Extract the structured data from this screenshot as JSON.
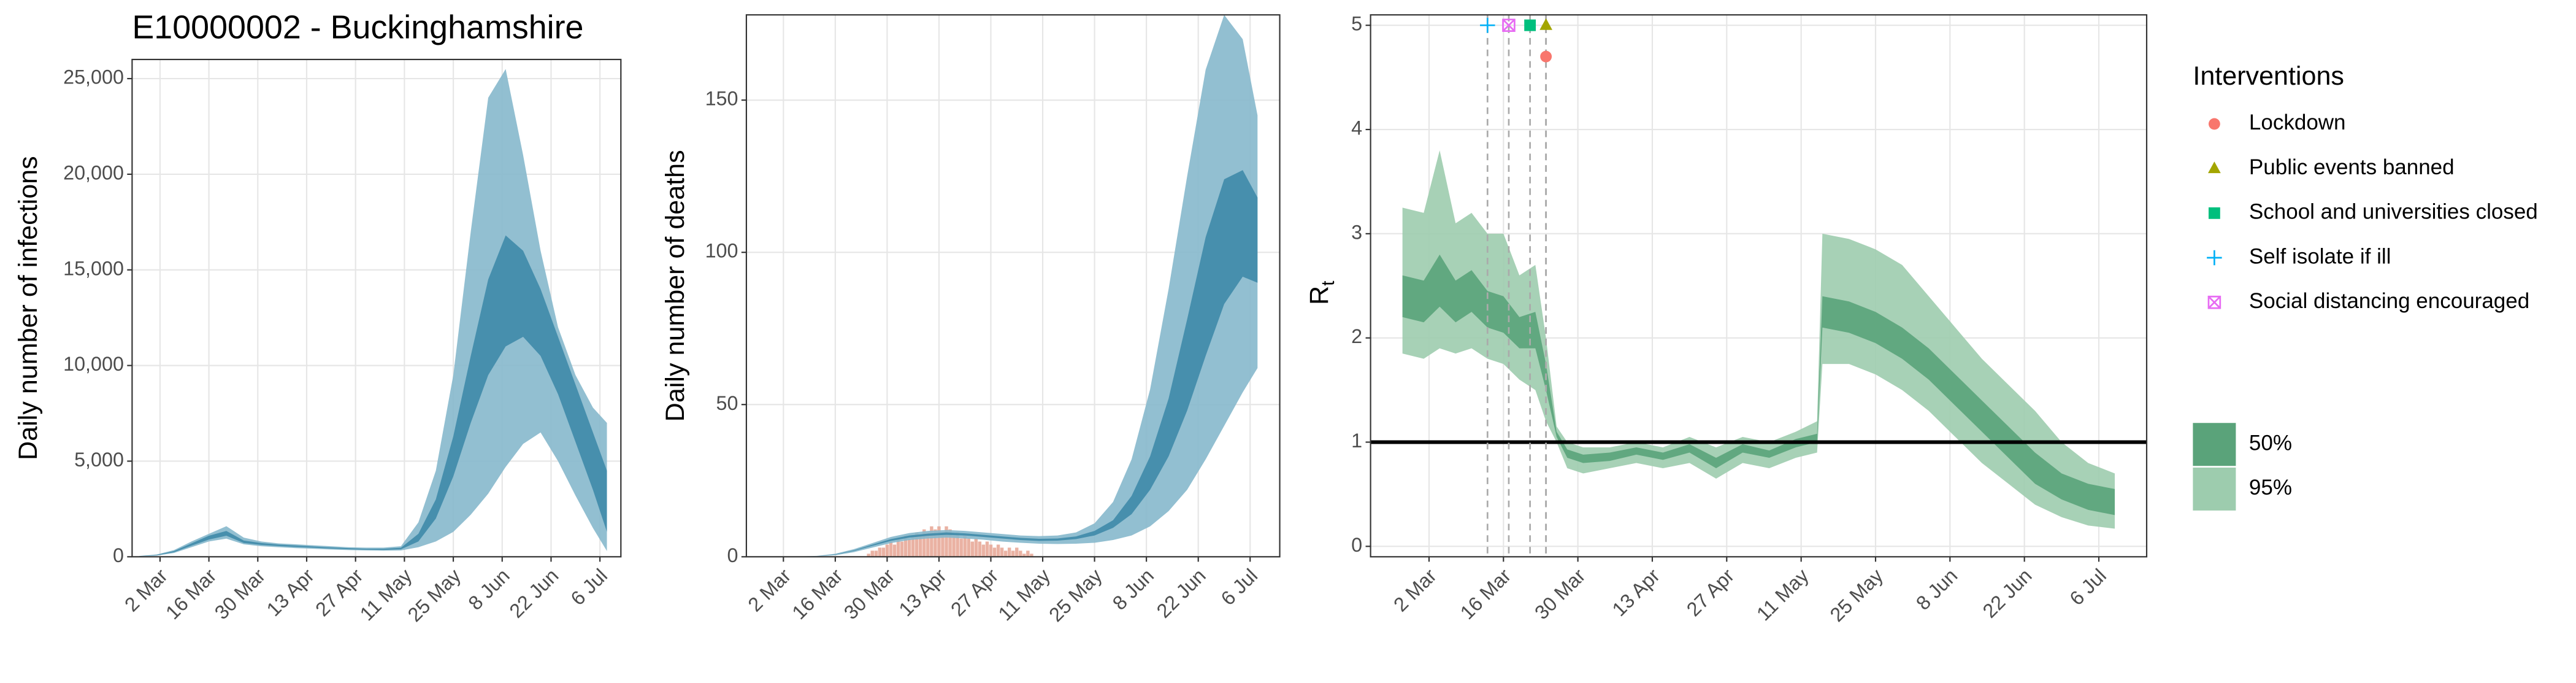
{
  "chart_data": [
    {
      "type": "area",
      "title": "E10000002 - Buckinghamshire",
      "ylabel": "Daily number of infections",
      "x": [
        "25 Feb",
        "1 Mar",
        "6 Mar",
        "11 Mar",
        "16 Mar",
        "21 Mar",
        "26 Mar",
        "31 Mar",
        "5 Apr",
        "10 Apr",
        "15 Apr",
        "20 Apr",
        "25 Apr",
        "30 Apr",
        "5 May",
        "10 May",
        "15 May",
        "20 May",
        "25 May",
        "30 May",
        "4 Jun",
        "9 Jun",
        "14 Jun",
        "19 Jun",
        "24 Jun",
        "29 Jun",
        "4 Jul",
        "8 Jul"
      ],
      "bands": [
        {
          "color": "#86b8cc",
          "lower": [
            20,
            60,
            200,
            500,
            800,
            950,
            650,
            550,
            500,
            450,
            420,
            380,
            350,
            330,
            320,
            330,
            500,
            800,
            1300,
            2200,
            3300,
            4700,
            5900,
            6500,
            5000,
            3200,
            1500,
            300
          ],
          "upper": [
            40,
            120,
            350,
            800,
            1200,
            1600,
            1000,
            800,
            700,
            650,
            600,
            550,
            500,
            480,
            480,
            550,
            1800,
            4500,
            9500,
            17000,
            24000,
            25500,
            21000,
            16000,
            12000,
            9500,
            7800,
            7000
          ]
        },
        {
          "color": "#3f8aa8",
          "lower": [
            25,
            75,
            240,
            580,
            900,
            1100,
            720,
            620,
            560,
            510,
            470,
            430,
            390,
            370,
            360,
            390,
            800,
            2000,
            4200,
            7000,
            9500,
            11000,
            11500,
            10500,
            8500,
            6000,
            3500,
            1300
          ],
          "upper": [
            35,
            100,
            300,
            700,
            1100,
            1350,
            850,
            720,
            640,
            590,
            540,
            490,
            450,
            420,
            420,
            470,
            1200,
            3000,
            6300,
            10500,
            14500,
            16800,
            16000,
            14000,
            11500,
            9000,
            6500,
            4500
          ]
        }
      ],
      "xlim": [
        "23 Feb",
        "12 Jul"
      ],
      "xticks": [
        "2 Mar",
        "16 Mar",
        "30 Mar",
        "13 Apr",
        "27 Apr",
        "11 May",
        "25 May",
        "8 Jun",
        "22 Jun",
        "6 Jul"
      ],
      "ylim": [
        0,
        26000
      ],
      "yticks": [
        0,
        {
          "value": 5000,
          "label": "5,000"
        },
        {
          "value": 10000,
          "label": "10,000"
        },
        {
          "value": 15000,
          "label": "15,000"
        },
        {
          "value": 20000,
          "label": "20,000"
        },
        {
          "value": 25000,
          "label": "25,000"
        }
      ],
      "grid": true
    },
    {
      "type": "area",
      "ylabel": "Daily number of deaths",
      "x": [
        "25 Feb",
        "1 Mar",
        "6 Mar",
        "11 Mar",
        "16 Mar",
        "21 Mar",
        "26 Mar",
        "31 Mar",
        "5 Apr",
        "10 Apr",
        "15 Apr",
        "20 Apr",
        "25 Apr",
        "30 Apr",
        "5 May",
        "10 May",
        "15 May",
        "20 May",
        "25 May",
        "30 May",
        "4 Jun",
        "9 Jun",
        "14 Jun",
        "19 Jun",
        "24 Jun",
        "29 Jun",
        "4 Jul",
        "8 Jul"
      ],
      "bands": [
        {
          "color": "#86b8cc",
          "lower": [
            0,
            0,
            0,
            0.1,
            0.5,
            1.5,
            3,
            4.5,
            5.5,
            6,
            6.3,
            6,
            5.6,
            5,
            4.6,
            4.3,
            4.2,
            4.3,
            4.6,
            5.5,
            7,
            10,
            15,
            22,
            32,
            43,
            54,
            62
          ],
          "upper": [
            0,
            0,
            0.1,
            0.3,
            1,
            2.5,
            4.5,
            6.5,
            7.8,
            8.5,
            8.8,
            8.5,
            8,
            7.5,
            7,
            6.8,
            7,
            8,
            11,
            18,
            32,
            55,
            88,
            125,
            160,
            178,
            170,
            145
          ]
        },
        {
          "color": "#3f8aa8",
          "lower": [
            0,
            0,
            0,
            0.2,
            0.7,
            1.9,
            3.6,
            5.2,
            6.3,
            6.9,
            7.2,
            7,
            6.5,
            6,
            5.5,
            5.2,
            5.3,
            5.8,
            7,
            9.5,
            14,
            22,
            33,
            48,
            66,
            83,
            92,
            90
          ],
          "upper": [
            0,
            0,
            0.1,
            0.2,
            0.8,
            2.1,
            4,
            5.8,
            7,
            7.6,
            8,
            7.7,
            7.2,
            6.7,
            6.2,
            5.9,
            6,
            6.7,
            8.5,
            12,
            20,
            33,
            52,
            78,
            105,
            124,
            127,
            118
          ]
        }
      ],
      "bars": {
        "color": "#e6a493",
        "x": [
          "25 Mar",
          "26 Mar",
          "27 Mar",
          "28 Mar",
          "29 Mar",
          "30 Mar",
          "31 Mar",
          "1 Apr",
          "2 Apr",
          "3 Apr",
          "4 Apr",
          "5 Apr",
          "6 Apr",
          "7 Apr",
          "8 Apr",
          "9 Apr",
          "10 Apr",
          "11 Apr",
          "12 Apr",
          "13 Apr",
          "14 Apr",
          "15 Apr",
          "16 Apr",
          "17 Apr",
          "18 Apr",
          "19 Apr",
          "20 Apr",
          "21 Apr",
          "22 Apr",
          "23 Apr",
          "24 Apr",
          "25 Apr",
          "26 Apr",
          "27 Apr",
          "28 Apr",
          "29 Apr",
          "30 Apr",
          "1 May",
          "2 May",
          "3 May",
          "4 May",
          "5 May",
          "6 May",
          "7 May",
          "8 May"
        ],
        "values": [
          1,
          2,
          2,
          3,
          3,
          4,
          5,
          4,
          6,
          5,
          7,
          6,
          7,
          8,
          7,
          9,
          8,
          10,
          9,
          10,
          8,
          10,
          9,
          7,
          8,
          6,
          7,
          6,
          5,
          6,
          5,
          4,
          5,
          4,
          3,
          4,
          3,
          2,
          3,
          2,
          3,
          2,
          1,
          2,
          1
        ]
      },
      "xlim": [
        "21 Feb",
        "14 Jul"
      ],
      "xticks": [
        "2 Mar",
        "16 Mar",
        "30 Mar",
        "13 Apr",
        "27 Apr",
        "11 May",
        "25 May",
        "8 Jun",
        "22 Jun",
        "6 Jul"
      ],
      "ylim": [
        0,
        178
      ],
      "yticks": [
        0,
        50,
        100,
        150
      ],
      "grid": true
    },
    {
      "type": "area",
      "ylabel": "R",
      "ylabel_subscript": "t",
      "x": [
        "26 Feb",
        "1 Mar",
        "4 Mar",
        "7 Mar",
        "10 Mar",
        "13 Mar",
        "16 Mar",
        "19 Mar",
        "22 Mar",
        "24 Mar",
        "26 Mar",
        "28 Mar",
        "31 Mar",
        "5 Apr",
        "10 Apr",
        "15 Apr",
        "20 Apr",
        "25 Apr",
        "30 Apr",
        "5 May",
        "10 May",
        "14 May",
        "15 May",
        "20 May",
        "25 May",
        "30 May",
        "4 Jun",
        "9 Jun",
        "14 Jun",
        "19 Jun",
        "24 Jun",
        "29 Jun",
        "4 Jul",
        "9 Jul"
      ],
      "series": [
        {
          "name": "50%",
          "color": "#5aa37a",
          "lower": [
            2.2,
            2.15,
            2.3,
            2.15,
            2.25,
            2.1,
            2.05,
            1.9,
            1.9,
            1.5,
            1.05,
            0.85,
            0.8,
            0.82,
            0.88,
            0.83,
            0.9,
            0.75,
            0.9,
            0.85,
            0.95,
            1.0,
            2.1,
            2.05,
            1.95,
            1.8,
            1.6,
            1.35,
            1.1,
            0.85,
            0.6,
            0.45,
            0.35,
            0.3
          ],
          "upper": [
            2.6,
            2.55,
            2.8,
            2.55,
            2.65,
            2.45,
            2.4,
            2.2,
            2.25,
            1.75,
            1.1,
            0.93,
            0.88,
            0.9,
            0.95,
            0.9,
            0.98,
            0.85,
            0.98,
            0.92,
            1.03,
            1.08,
            2.4,
            2.35,
            2.25,
            2.1,
            1.9,
            1.65,
            1.4,
            1.15,
            0.9,
            0.7,
            0.6,
            0.55
          ]
        },
        {
          "name": "95%",
          "color": "#9dccae",
          "lower": [
            1.85,
            1.8,
            1.9,
            1.85,
            1.9,
            1.8,
            1.75,
            1.6,
            1.5,
            1.2,
            1.0,
            0.75,
            0.7,
            0.75,
            0.8,
            0.75,
            0.8,
            0.65,
            0.8,
            0.75,
            0.85,
            0.9,
            1.75,
            1.75,
            1.65,
            1.5,
            1.3,
            1.05,
            0.8,
            0.6,
            0.4,
            0.28,
            0.2,
            0.17
          ],
          "upper": [
            3.25,
            3.2,
            3.8,
            3.1,
            3.2,
            3.0,
            3.0,
            2.6,
            2.7,
            2.0,
            1.15,
            1.0,
            0.95,
            0.95,
            1.0,
            0.95,
            1.05,
            0.95,
            1.05,
            1.0,
            1.1,
            1.2,
            3.0,
            2.95,
            2.85,
            2.7,
            2.4,
            2.1,
            1.8,
            1.55,
            1.3,
            1.0,
            0.8,
            0.7
          ]
        }
      ],
      "hline": 1,
      "interventions_title": "Interventions",
      "interventions": [
        {
          "name": "Lockdown",
          "date": "24 Mar",
          "y": 4.7,
          "color": "#F8766D",
          "shape": "circle"
        },
        {
          "name": "Public events banned",
          "date": "24 Mar",
          "y": 5,
          "color": "#A3A500",
          "shape": "triangle"
        },
        {
          "name": "School and universities closed",
          "date": "21 Mar",
          "y": 5,
          "color": "#00BF7D",
          "shape": "square"
        },
        {
          "name": "Self isolate if ill",
          "date": "13 Mar",
          "y": 5,
          "color": "#00B0F6",
          "shape": "plus"
        },
        {
          "name": "Social distancing encouraged",
          "date": "17 Mar",
          "y": 5,
          "color": "#E76BF3",
          "shape": "boxx"
        }
      ],
      "xlim": [
        "20 Feb",
        "15 Jul"
      ],
      "xticks": [
        "2 Mar",
        "16 Mar",
        "30 Mar",
        "13 Apr",
        "27 Apr",
        "11 May",
        "25 May",
        "8 Jun",
        "22 Jun",
        "6 Jul"
      ],
      "ylim": [
        -0.1,
        5.1
      ],
      "yticks": [
        0,
        1,
        2,
        3,
        4,
        5
      ],
      "grid": true
    }
  ]
}
